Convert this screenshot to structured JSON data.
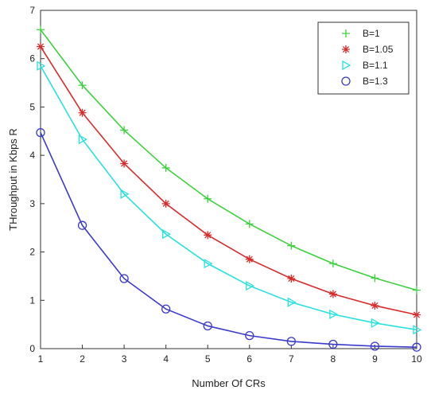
{
  "chart_data": {
    "type": "line",
    "xlabel": "Number Of CRs",
    "ylabel": "THroughput in Kbps  R",
    "xlim": [
      1,
      10
    ],
    "ylim": [
      0,
      7
    ],
    "x": [
      1,
      2,
      3,
      4,
      5,
      6,
      7,
      8,
      9,
      10
    ],
    "xticks": [
      "1",
      "2",
      "3",
      "4",
      "5",
      "6",
      "7",
      "8",
      "9",
      "10"
    ],
    "yticks": [
      "0",
      "1",
      "2",
      "3",
      "4",
      "5",
      "6",
      "7"
    ],
    "grid": false,
    "legend_position": "top-right",
    "series": [
      {
        "name": "B=1",
        "marker": "plus",
        "color": "#3dd13d",
        "values": [
          6.6,
          5.45,
          4.52,
          3.74,
          3.1,
          2.58,
          2.13,
          1.76,
          1.46,
          1.21
        ]
      },
      {
        "name": "B=1.05",
        "marker": "asterisk",
        "color": "#d92b2b",
        "values": [
          6.25,
          4.88,
          3.83,
          3.0,
          2.35,
          1.85,
          1.45,
          1.13,
          0.89,
          0.7
        ]
      },
      {
        "name": "B=1.1",
        "marker": "triangle-right",
        "color": "#29e0e0",
        "values": [
          5.85,
          4.33,
          3.2,
          2.37,
          1.76,
          1.3,
          0.96,
          0.71,
          0.53,
          0.39
        ]
      },
      {
        "name": "B=1.3",
        "marker": "circle",
        "color": "#3a3acc",
        "values": [
          4.47,
          2.55,
          1.45,
          0.82,
          0.47,
          0.27,
          0.15,
          0.09,
          0.05,
          0.03
        ]
      }
    ]
  }
}
